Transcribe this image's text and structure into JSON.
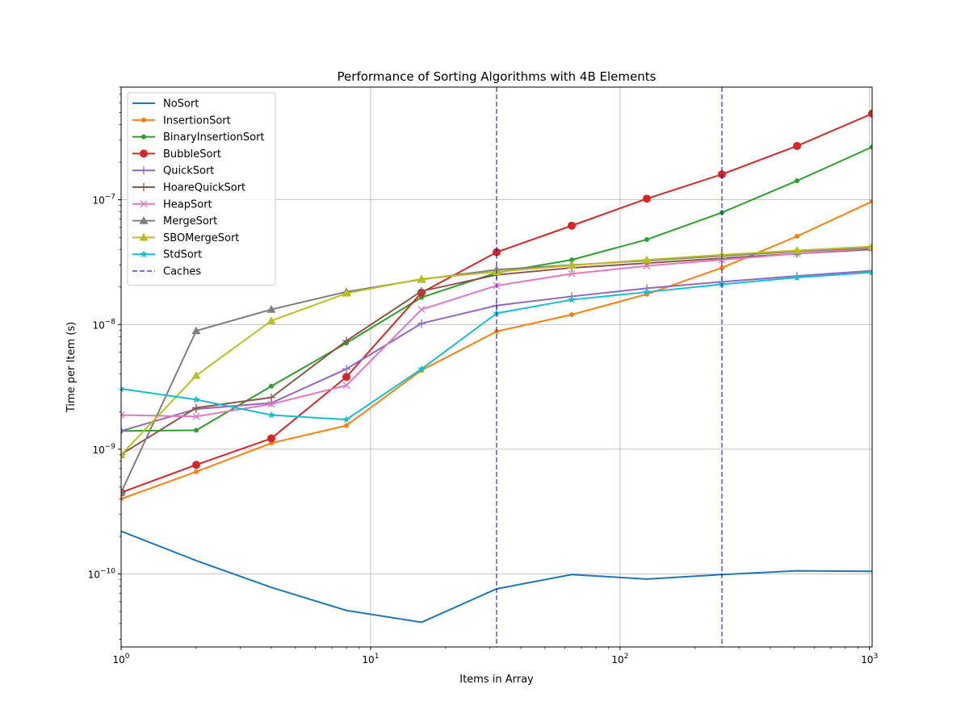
{
  "chart_data": {
    "type": "line",
    "title": "Performance of Sorting Algorithms with 4B Elements",
    "xlabel": "Items in Array",
    "ylabel": "Time per Item (s)",
    "xscale": "log",
    "yscale": "log",
    "xlim": [
      1,
      1024
    ],
    "ylim": [
      2.6e-11,
      8e-07
    ],
    "grid": true,
    "legend_position": "top-left",
    "x_ticks": [
      {
        "value": 1,
        "base": "10",
        "exp": "0"
      },
      {
        "value": 10,
        "base": "10",
        "exp": "1"
      },
      {
        "value": 100,
        "base": "10",
        "exp": "2"
      },
      {
        "value": 1000,
        "base": "10",
        "exp": "3"
      }
    ],
    "y_ticks": [
      {
        "value": 1e-10,
        "base": "10",
        "exp": "−10"
      },
      {
        "value": 1e-09,
        "base": "10",
        "exp": "−9"
      },
      {
        "value": 1e-08,
        "base": "10",
        "exp": "−8"
      },
      {
        "value": 1e-07,
        "base": "10",
        "exp": "−7"
      }
    ],
    "x": [
      1,
      2,
      4,
      8,
      16,
      32,
      64,
      128,
      256,
      512,
      1024
    ],
    "series": [
      {
        "name": "NoSort",
        "color": "#1f77b4",
        "marker": "none",
        "values": [
          2.2e-10,
          1.28e-10,
          7.8e-11,
          5.1e-11,
          4.1e-11,
          7.6e-11,
          9.9e-11,
          9.1e-11,
          9.9e-11,
          1.06e-10,
          1.05e-10
        ]
      },
      {
        "name": "InsertionSort",
        "color": "#ff7f0e",
        "marker": "dot",
        "values": [
          4e-10,
          6.6e-10,
          1.12e-09,
          1.55e-09,
          4.3e-09,
          8.8e-09,
          1.2e-08,
          1.75e-08,
          2.85e-08,
          5.1e-08,
          9.7e-08
        ]
      },
      {
        "name": "BinaryInsertionSort",
        "color": "#2ca02c",
        "marker": "dot",
        "values": [
          1.4e-09,
          1.42e-09,
          3.2e-09,
          7.1e-09,
          1.65e-08,
          2.6e-08,
          3.3e-08,
          4.8e-08,
          7.9e-08,
          1.42e-07,
          2.65e-07
        ]
      },
      {
        "name": "BubbleSort",
        "color": "#d62728",
        "marker": "circle",
        "values": [
          4.5e-10,
          7.5e-10,
          1.22e-09,
          3.8e-09,
          1.8e-08,
          3.8e-08,
          6.2e-08,
          1.02e-07,
          1.6e-07,
          2.7e-07,
          4.9e-07
        ]
      },
      {
        "name": "QuickSort",
        "color": "#9467bd",
        "marker": "plus",
        "values": [
          1.4e-09,
          2.1e-09,
          2.35e-09,
          4.4e-09,
          1.02e-08,
          1.42e-08,
          1.68e-08,
          1.95e-08,
          2.2e-08,
          2.45e-08,
          2.7e-08
        ]
      },
      {
        "name": "HoareQuickSort",
        "color": "#8c564b",
        "marker": "plus",
        "values": [
          9.1e-10,
          2.15e-09,
          2.6e-09,
          7.4e-09,
          1.85e-08,
          2.5e-08,
          2.85e-08,
          3.1e-08,
          3.4e-08,
          3.7e-08,
          4e-08
        ]
      },
      {
        "name": "HeapSort",
        "color": "#e377c2",
        "marker": "x",
        "values": [
          1.88e-09,
          1.83e-09,
          2.3e-09,
          3.25e-09,
          1.32e-08,
          2.05e-08,
          2.55e-08,
          2.95e-08,
          3.3e-08,
          3.7e-08,
          4.1e-08
        ]
      },
      {
        "name": "MergeSort",
        "color": "#7f7f7f",
        "marker": "triangle",
        "values": [
          4.5e-10,
          8.9e-09,
          1.32e-08,
          1.83e-08,
          2.3e-08,
          2.75e-08,
          3e-08,
          3.25e-08,
          3.55e-08,
          3.85e-08,
          4.15e-08
        ]
      },
      {
        "name": "SBOMergeSort",
        "color": "#bcbd22",
        "marker": "triangle",
        "values": [
          9e-10,
          3.9e-09,
          1.07e-08,
          1.78e-08,
          2.32e-08,
          2.65e-08,
          2.98e-08,
          3.3e-08,
          3.62e-08,
          3.92e-08,
          4.22e-08
        ]
      },
      {
        "name": "StdSort",
        "color": "#17becf",
        "marker": "star",
        "values": [
          3.05e-09,
          2.5e-09,
          1.88e-09,
          1.73e-09,
          4.4e-09,
          1.23e-08,
          1.58e-08,
          1.82e-08,
          2.1e-08,
          2.38e-08,
          2.62e-08
        ]
      }
    ],
    "vlines": {
      "name": "Caches",
      "color": "#0000dd",
      "x": [
        32,
        256
      ]
    }
  }
}
